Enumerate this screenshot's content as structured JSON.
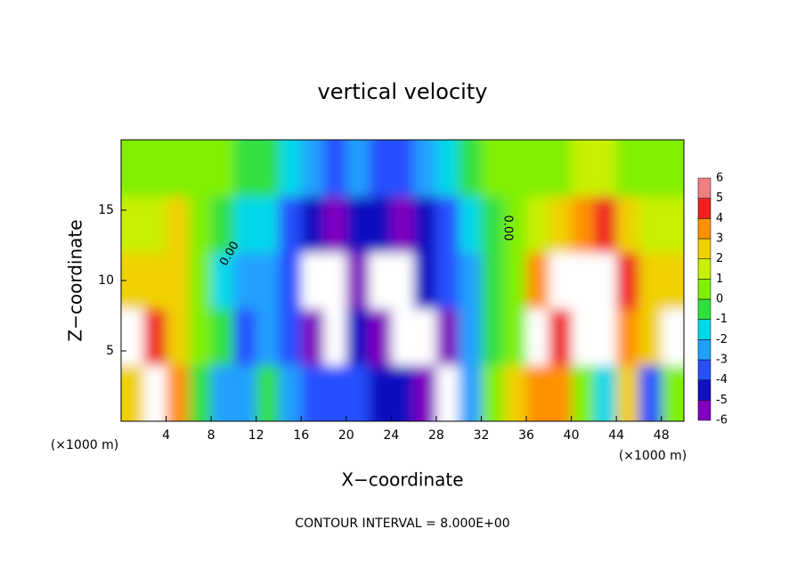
{
  "chart_data": {
    "type": "heatmap",
    "title": "vertical velocity",
    "xlabel": "X−coordinate",
    "ylabel": "Z−coordinate",
    "unit_label": "(×1000 m)",
    "annotation": "CONTOUR INTERVAL = 8.000E+00",
    "contour_labels": [
      "0.00",
      "0.00"
    ],
    "xlim": [
      0,
      50
    ],
    "ylim": [
      0,
      20
    ],
    "xticks": [
      4,
      8,
      12,
      16,
      20,
      24,
      28,
      32,
      36,
      40,
      44,
      48
    ],
    "yticks": [
      5,
      10,
      15
    ],
    "x": [
      1,
      3,
      5,
      7,
      9,
      11,
      13,
      15,
      17,
      19,
      21,
      23,
      25,
      27,
      29,
      31,
      33,
      35,
      37,
      39,
      41,
      43,
      45,
      47,
      49
    ],
    "y": [
      2,
      6,
      10,
      14,
      18
    ],
    "z": [
      [
        3,
        8,
        4,
        0,
        -2,
        -2,
        0,
        -2,
        -3,
        -3,
        -3,
        -4,
        -4,
        -5,
        -8,
        -2,
        1,
        3,
        4,
        4,
        1,
        -1,
        3,
        -3,
        1
      ],
      [
        7,
        5,
        3,
        1,
        0,
        -3,
        -2,
        -3,
        -5,
        -8,
        -4,
        -5,
        -8,
        -8,
        -5,
        -2,
        0,
        1,
        8,
        5,
        8,
        8,
        4,
        3,
        7
      ],
      [
        3,
        3,
        3,
        1,
        -1,
        -2,
        -2,
        -3,
        -8,
        -8,
        -5,
        -8,
        -8,
        -4,
        -3,
        -2,
        0,
        1,
        4,
        8,
        8,
        8,
        5,
        3,
        3
      ],
      [
        2,
        2,
        3,
        1,
        0,
        -1,
        -1,
        -3,
        -4,
        -5,
        -4,
        -4,
        -5,
        -4,
        -3,
        -1,
        0,
        1,
        2,
        3,
        4,
        5,
        3,
        2,
        2
      ],
      [
        0.5,
        0.5,
        1,
        0.5,
        0.5,
        0,
        0,
        -1,
        -2,
        -3,
        -2,
        -3,
        -3,
        -2,
        -1,
        0,
        0.5,
        0.5,
        1,
        1,
        2,
        2,
        1,
        1,
        0.5
      ]
    ],
    "levels": [
      -6,
      -5,
      -4,
      -3,
      -2,
      -1,
      0,
      1,
      2,
      3,
      4,
      5,
      6
    ],
    "colors": [
      "#8000c0",
      "#1010c0",
      "#2850ff",
      "#20a0ff",
      "#00d8e8",
      "#30e040",
      "#80f000",
      "#c8f000",
      "#f0d000",
      "#ff9000",
      "#f02020",
      "#f08080"
    ]
  }
}
